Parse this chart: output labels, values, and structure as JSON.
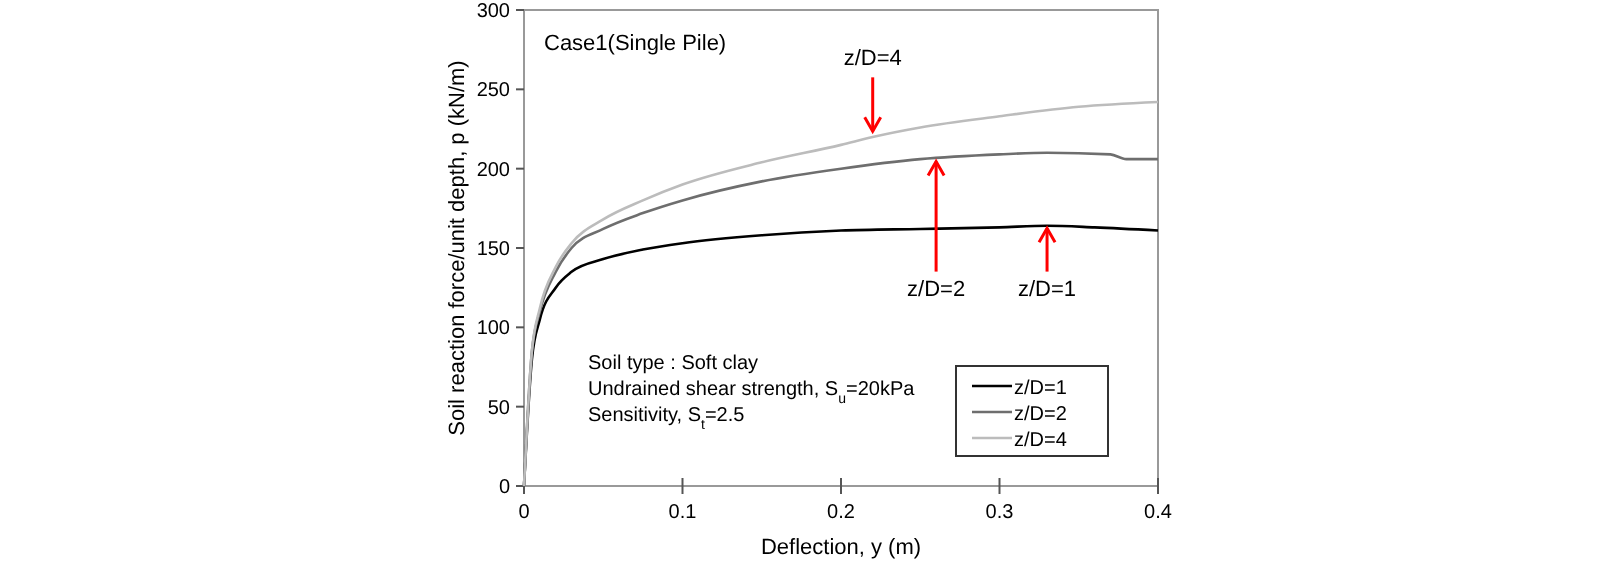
{
  "chart_data": {
    "type": "line",
    "xlabel": "Deflection, y (m)",
    "ylabel": "Soil reaction force/unit depth, p (kN/m)",
    "xlim": [
      0,
      0.4
    ],
    "xticks": [
      0,
      0.1,
      0.2,
      0.3,
      0.4
    ],
    "ylim": [
      0,
      300
    ],
    "yticks": [
      0,
      50,
      100,
      150,
      200,
      250,
      300
    ],
    "grid": false,
    "legend": "bottom right",
    "marker": "none",
    "line_style": "solid",
    "series": [
      {
        "name": "z/D=1",
        "color": "#000000",
        "x": [
          0,
          0.005,
          0.01,
          0.02,
          0.03,
          0.05,
          0.075,
          0.1,
          0.15,
          0.2,
          0.25,
          0.3,
          0.33,
          0.36,
          0.4
        ],
        "values": [
          0,
          80,
          105,
          125,
          135,
          143,
          149,
          153,
          158,
          161,
          162,
          163,
          164,
          163,
          161
        ]
      },
      {
        "name": "z/D=2",
        "color": "#6e6e6e",
        "x": [
          0,
          0.005,
          0.01,
          0.02,
          0.03,
          0.05,
          0.075,
          0.1,
          0.15,
          0.2,
          0.25,
          0.3,
          0.33,
          0.37,
          0.38,
          0.4
        ],
        "values": [
          0,
          85,
          110,
          135,
          150,
          162,
          172,
          180,
          192,
          200,
          206,
          209,
          210,
          209,
          206,
          206
        ]
      },
      {
        "name": "z/D=4",
        "color": "#bcbcbc",
        "x": [
          0,
          0.005,
          0.01,
          0.02,
          0.03,
          0.05,
          0.075,
          0.1,
          0.15,
          0.2,
          0.22,
          0.25,
          0.3,
          0.35,
          0.4
        ],
        "values": [
          0,
          85,
          112,
          138,
          153,
          168,
          180,
          190,
          204,
          215,
          220,
          226,
          233,
          239,
          242
        ]
      }
    ],
    "annotations": [
      "Case1(Single Pile)",
      "Soil type : Soft clay",
      "Undrained shear strength, S$_{u}$=20kPa",
      "Sensitivity, S$_{t}$=2.5",
      {
        "text": "z/D=4",
        "x": 0.22,
        "y": 221
      },
      {
        "text": "z/D=2",
        "x": 0.26,
        "y": 207
      },
      {
        "text": "z/D=1",
        "x": 0.33,
        "y": 165
      }
    ]
  }
}
